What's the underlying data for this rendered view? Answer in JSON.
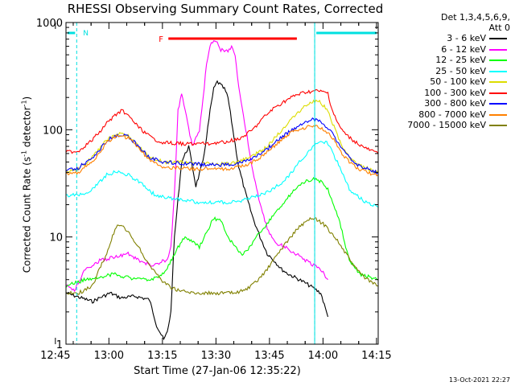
{
  "title": "RHESSI Observing Summary Count Rates, Corrected",
  "timestamp": "13-Oct-2021 22:27",
  "legend": {
    "title_lines": [
      "Det 1,3,4,5,6,9,",
      "Att 0"
    ],
    "items": [
      {
        "label": "3 - 6 keV",
        "color": "#000000"
      },
      {
        "label": "6 - 12 keV",
        "color": "#ff00ff"
      },
      {
        "label": "12 - 25 keV",
        "color": "#00ff00"
      },
      {
        "label": "25 - 50 keV",
        "color": "#00ffff"
      },
      {
        "label": "50 - 100 keV",
        "color": "#dddd00"
      },
      {
        "label": "100 - 300 keV",
        "color": "#ff0000"
      },
      {
        "label": "300 - 800 keV",
        "color": "#0000ff"
      },
      {
        "label": "800 - 7000 keV",
        "color": "#ff8000"
      },
      {
        "label": "7000 - 15000 keV",
        "color": "#808000"
      }
    ]
  },
  "annotations": {
    "night_label": "N",
    "flare_label": "F"
  },
  "chart_data": {
    "type": "line",
    "title": "RHESSI Observing Summary Count Rates, Corrected",
    "xlabel": "Start Time (27-Jan-06 12:35:22)",
    "ylabel": {
      "main": "Corrected Count Rate (s",
      "exp1": "-1",
      "mid": " detector",
      "exp2": "-1",
      "end": ")"
    },
    "y_scale": "log",
    "ylim": [
      1,
      1000
    ],
    "xlim_minutes": [
      12.6,
      100.1
    ],
    "x_ticks": [
      {
        "label": "12:45",
        "t": 9.63
      },
      {
        "label": "13:00",
        "t": 24.63
      },
      {
        "label": "13:15",
        "t": 39.63
      },
      {
        "label": "13:30",
        "t": 54.63
      },
      {
        "label": "13:45",
        "t": 69.63
      },
      {
        "label": "14:00",
        "t": 84.63
      },
      {
        "label": "14:15",
        "t": 99.63
      }
    ],
    "y_ticks": [
      {
        "label": "1",
        "v": 1
      },
      {
        "label": "10",
        "v": 10
      },
      {
        "label": "100",
        "v": 100
      },
      {
        "label": "1000",
        "v": 1000
      }
    ],
    "night_intervals": [
      [
        12.6,
        15.6
      ],
      [
        82.3,
        100.1
      ]
    ],
    "flare_interval": [
      41.3,
      77.3
    ],
    "series": [
      {
        "name": "3 - 6 keV",
        "color": "#000000",
        "x": [
          12.6,
          20,
          22,
          25,
          28,
          32,
          36,
          38,
          40,
          41,
          42,
          43,
          45,
          47,
          49,
          51,
          53,
          54,
          55,
          56,
          57,
          58,
          59,
          61,
          63,
          65,
          67,
          69,
          71,
          73,
          75,
          78,
          81,
          84,
          86
        ],
        "y": [
          3,
          2.5,
          2.7,
          3,
          2.7,
          2.8,
          2.6,
          1.5,
          1.1,
          1.3,
          2,
          10,
          50,
          70,
          30,
          50,
          150,
          240,
          280,
          260,
          240,
          200,
          120,
          45,
          25,
          15,
          10,
          7,
          6,
          5,
          4.5,
          4,
          3.5,
          3,
          1.8
        ]
      },
      {
        "name": "6 - 12 keV",
        "color": "#ff00ff",
        "x": [
          12.6,
          15,
          18,
          22,
          26,
          30,
          33,
          36,
          38,
          40,
          41,
          42,
          43,
          44,
          45,
          46,
          48,
          50,
          52,
          53,
          54,
          55,
          56,
          58,
          59,
          60,
          61,
          63,
          65,
          67,
          69,
          71,
          74,
          77,
          80,
          84,
          86
        ],
        "y": [
          3.5,
          3.2,
          5,
          6,
          6.5,
          7,
          6,
          5.5,
          5.5,
          6,
          6,
          8,
          25,
          150,
          220,
          150,
          70,
          100,
          400,
          600,
          700,
          650,
          550,
          550,
          600,
          500,
          250,
          100,
          40,
          20,
          12,
          9,
          8,
          7,
          6,
          5,
          4
        ]
      },
      {
        "name": "12 - 25 keV",
        "color": "#00ff00",
        "x": [
          12.6,
          16,
          18,
          22,
          26,
          30,
          33,
          36,
          38,
          40,
          42,
          44,
          46,
          48,
          50,
          52,
          54,
          56,
          58,
          60,
          62,
          64,
          66,
          68,
          70,
          72,
          74,
          76,
          78,
          80,
          82,
          84,
          86,
          89,
          92,
          95,
          98,
          100
        ],
        "y": [
          3.5,
          3.8,
          4,
          4.2,
          4.5,
          4.2,
          4,
          4,
          4.2,
          4.5,
          6,
          8,
          10,
          9,
          8,
          11,
          15,
          14,
          10,
          8,
          7,
          8,
          10,
          12,
          15,
          18,
          22,
          26,
          30,
          33,
          35,
          33,
          28,
          15,
          6,
          4.5,
          4.2,
          4
        ]
      },
      {
        "name": "25 - 50 keV",
        "color": "#00ffff",
        "x": [
          12.6,
          17,
          20,
          24,
          26,
          28,
          30,
          33,
          36,
          38,
          42,
          46,
          50,
          54,
          58,
          62,
          66,
          70,
          73,
          76,
          78,
          80,
          82,
          84,
          86,
          88,
          90,
          92,
          95,
          98,
          100
        ],
        "y": [
          24,
          25,
          28,
          38,
          40,
          40,
          38,
          33,
          27,
          24,
          23,
          22,
          21,
          21,
          21,
          22,
          24,
          27,
          32,
          40,
          50,
          60,
          70,
          78,
          75,
          55,
          40,
          28,
          23,
          20,
          19
        ]
      },
      {
        "name": "50 - 100 keV",
        "color": "#dddd00",
        "x": [
          12.6,
          16,
          20,
          24,
          26,
          28,
          30,
          33,
          36,
          40,
          44,
          48,
          52,
          56,
          60,
          64,
          68,
          72,
          76,
          78,
          80,
          82,
          84,
          86,
          88,
          90,
          92,
          94,
          96,
          98,
          100
        ],
        "y": [
          41,
          43,
          55,
          80,
          90,
          92,
          88,
          70,
          55,
          50,
          50,
          49,
          48,
          48,
          49,
          55,
          65,
          90,
          130,
          150,
          170,
          185,
          180,
          150,
          100,
          70,
          55,
          48,
          45,
          42,
          40
        ]
      },
      {
        "name": "100 - 300 keV",
        "color": "#ff0000",
        "x": [
          12.6,
          16,
          20,
          24,
          27,
          28,
          29,
          31,
          33,
          35,
          37,
          40,
          43,
          46,
          50,
          54,
          58,
          62,
          65,
          68,
          71,
          74,
          77,
          80,
          83,
          86,
          87,
          89,
          91,
          93,
          95,
          97,
          100
        ],
        "y": [
          62,
          63,
          80,
          115,
          142,
          150,
          145,
          125,
          105,
          92,
          82,
          76,
          75,
          74,
          74,
          75,
          78,
          85,
          100,
          130,
          160,
          185,
          210,
          225,
          230,
          220,
          160,
          110,
          90,
          80,
          72,
          66,
          60
        ]
      },
      {
        "name": "300 - 800 keV",
        "color": "#0000ff",
        "x": [
          12.6,
          16,
          20,
          24,
          26,
          28,
          30,
          33,
          36,
          40,
          44,
          48,
          52,
          56,
          60,
          64,
          68,
          72,
          76,
          78,
          80,
          82,
          84,
          86,
          88,
          90,
          92,
          94,
          96,
          98,
          100
        ],
        "y": [
          42,
          44,
          55,
          78,
          88,
          90,
          86,
          70,
          55,
          50,
          49,
          48,
          47,
          47,
          48,
          52,
          62,
          80,
          100,
          110,
          120,
          125,
          118,
          105,
          85,
          65,
          55,
          48,
          44,
          42,
          40
        ]
      },
      {
        "name": "800 - 7000 keV",
        "color": "#ff8000",
        "x": [
          12.6,
          16,
          20,
          24,
          26,
          28,
          30,
          33,
          36,
          40,
          44,
          48,
          52,
          56,
          60,
          64,
          68,
          72,
          76,
          78,
          80,
          82,
          84,
          86,
          88,
          90,
          92,
          94,
          96,
          98,
          100
        ],
        "y": [
          38,
          40,
          50,
          75,
          85,
          88,
          84,
          68,
          52,
          45,
          44,
          43,
          43,
          43,
          44,
          48,
          58,
          75,
          95,
          100,
          105,
          108,
          103,
          95,
          78,
          60,
          50,
          44,
          41,
          39,
          38
        ]
      },
      {
        "name": "7000 - 15000 keV",
        "color": "#808000",
        "x": [
          12.6,
          16,
          18,
          20,
          22,
          24,
          26,
          27,
          28,
          29,
          30,
          32,
          34,
          36,
          38,
          40,
          42,
          44,
          46,
          48,
          52,
          56,
          60,
          63,
          66,
          69,
          72,
          75,
          78,
          81,
          83,
          85,
          88,
          91,
          94,
          97,
          100
        ],
        "y": [
          3,
          3,
          3.2,
          3.5,
          5,
          7,
          11,
          12.5,
          12.7,
          12,
          11,
          9,
          7,
          5.5,
          4.5,
          3.8,
          3.4,
          3.2,
          3.1,
          3,
          3,
          3,
          3,
          3.2,
          3.8,
          5,
          7,
          9.5,
          12.5,
          14.5,
          14.5,
          13,
          10,
          7,
          5,
          4,
          3.5
        ]
      }
    ]
  }
}
